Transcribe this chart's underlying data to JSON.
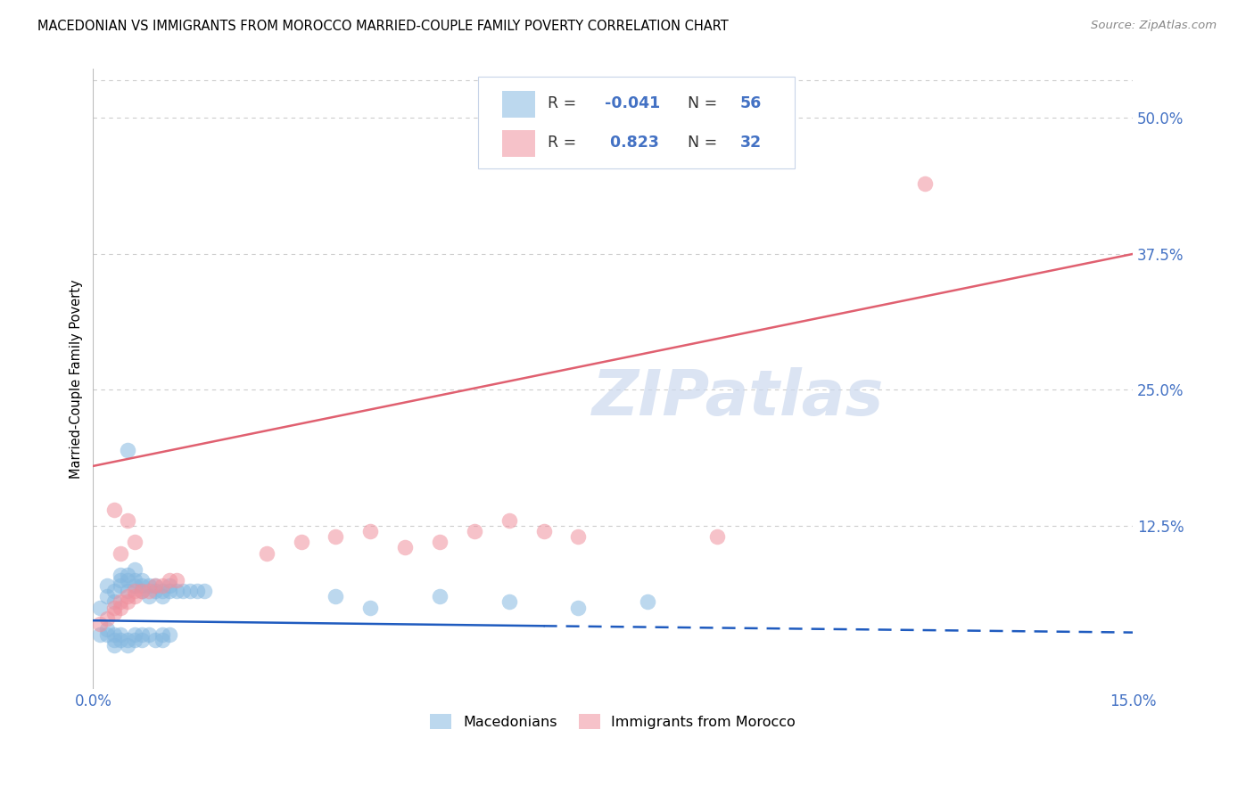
{
  "title": "MACEDONIAN VS IMMIGRANTS FROM MOROCCO MARRIED-COUPLE FAMILY POVERTY CORRELATION CHART",
  "source": "Source: ZipAtlas.com",
  "ylabel": "Married-Couple Family Poverty",
  "xlim": [
    0.0,
    0.15
  ],
  "ylim": [
    -0.025,
    0.545
  ],
  "xtick_positions": [
    0.0,
    0.025,
    0.05,
    0.075,
    0.1,
    0.125,
    0.15
  ],
  "xtick_labels": [
    "0.0%",
    "",
    "",
    "",
    "",
    "",
    "15.0%"
  ],
  "ytick_labels": [
    "50.0%",
    "37.5%",
    "25.0%",
    "12.5%"
  ],
  "ytick_positions": [
    0.5,
    0.375,
    0.25,
    0.125
  ],
  "watermark": "ZIPatlas",
  "macedonian_color": "#85b8e0",
  "morocco_color": "#f0919e",
  "trend_mac_color": "#1f5bbf",
  "trend_mor_color": "#e06070",
  "background_color": "#ffffff",
  "grid_color": "#cccccc",
  "blue_label_color": "#4472c4",
  "legend_box_color": "#f0f4fb",
  "legend_border_color": "#c8d4e8",
  "mac_R": "-0.041",
  "mac_N": "56",
  "mor_R": "0.823",
  "mor_N": "32",
  "trend_mor_x0": 0.0,
  "trend_mor_y0": 0.18,
  "trend_mor_x1": 0.15,
  "trend_mor_y1": 0.375,
  "trend_mac_x0": 0.0,
  "trend_mac_y0": 0.038,
  "trend_mac_x1": 0.065,
  "trend_mac_y1": 0.033,
  "trend_mac_dash_x0": 0.065,
  "trend_mac_dash_y0": 0.033,
  "trend_mac_dash_x1": 0.15,
  "trend_mac_dash_y1": 0.027
}
